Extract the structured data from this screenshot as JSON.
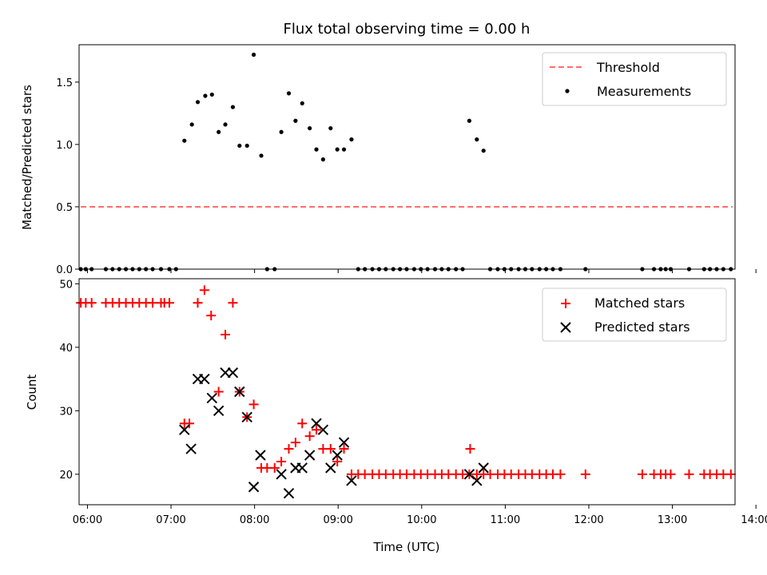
{
  "chart_data": [
    {
      "type": "scatter",
      "title": "Flux total observing time = 0.00 h",
      "ylabel": "Matched/Predicted stars",
      "xlim": [
        5.9,
        13.75
      ],
      "ylim": [
        0.0,
        1.8
      ],
      "yticks": [
        "0.0",
        "0.5",
        "1.0",
        "1.5"
      ],
      "ytick_values": [
        0.0,
        0.5,
        1.0,
        1.5
      ],
      "xtick_values": [
        6,
        7,
        8,
        9,
        10,
        11,
        12,
        13,
        14
      ],
      "legend_position": "top-right",
      "threshold": {
        "name": "Threshold",
        "y": 0.5,
        "x": [
          5.92,
          13.72
        ],
        "color": "#ff6e6e"
      },
      "measurements": {
        "name": "Measurements",
        "color": "#000000",
        "x": [
          5.92,
          5.98,
          6.05,
          6.22,
          6.3,
          6.38,
          6.46,
          6.54,
          6.62,
          6.7,
          6.78,
          6.88,
          6.98,
          7.06,
          7.16,
          7.25,
          7.32,
          7.41,
          7.49,
          7.57,
          7.65,
          7.74,
          7.82,
          7.91,
          7.99,
          8.08,
          8.15,
          8.24,
          8.32,
          8.41,
          8.49,
          8.57,
          8.66,
          8.74,
          8.82,
          8.91,
          8.99,
          9.07,
          9.16,
          9.24,
          9.32,
          9.41,
          9.49,
          9.57,
          9.66,
          9.74,
          9.82,
          9.91,
          9.99,
          10.07,
          10.16,
          10.24,
          10.32,
          10.41,
          10.49,
          10.57,
          10.66,
          10.74,
          10.82,
          10.91,
          10.99,
          11.07,
          11.16,
          11.24,
          11.32,
          11.41,
          11.49,
          11.57,
          11.66,
          11.96,
          12.64,
          12.78,
          12.86,
          12.92,
          12.98,
          13.2,
          13.38,
          13.45,
          13.53,
          13.61,
          13.7
        ],
        "y": [
          0,
          0,
          0,
          0,
          0,
          0,
          0,
          0,
          0,
          0,
          0,
          0,
          0,
          0,
          1.03,
          1.16,
          1.34,
          1.39,
          1.4,
          1.1,
          1.16,
          1.3,
          0.99,
          0.99,
          1.72,
          0.91,
          0,
          0,
          1.1,
          1.41,
          1.19,
          1.33,
          1.13,
          0.96,
          0.88,
          1.13,
          0.96,
          0.96,
          1.04,
          0,
          0,
          0,
          0,
          0,
          0,
          0,
          0,
          0,
          0,
          0,
          0,
          0,
          0,
          0,
          0,
          1.19,
          1.04,
          0.95,
          0,
          0,
          0,
          0,
          0,
          0,
          0,
          0,
          0,
          0,
          0,
          0,
          0,
          0,
          0,
          0,
          0,
          0,
          0,
          0,
          0,
          0,
          0
        ]
      }
    },
    {
      "type": "scatter",
      "ylabel": "Count",
      "xlabel": "Time (UTC)",
      "xlim": [
        5.9,
        13.75
      ],
      "ylim": [
        15.2,
        50.8
      ],
      "yticks": [
        "20",
        "30",
        "40",
        "50"
      ],
      "ytick_values": [
        20,
        30,
        40,
        50
      ],
      "xticks": [
        "06:00",
        "07:00",
        "08:00",
        "09:00",
        "10:00",
        "11:00",
        "12:00",
        "13:00",
        "14:00"
      ],
      "xtick_values": [
        6,
        7,
        8,
        9,
        10,
        11,
        12,
        13,
        14
      ],
      "legend_position": "top-right",
      "series": [
        {
          "name": "Matched stars",
          "marker": "+",
          "color": "#ff0000",
          "x": [
            5.92,
            5.98,
            6.05,
            6.22,
            6.3,
            6.38,
            6.46,
            6.54,
            6.62,
            6.7,
            6.78,
            6.88,
            6.92,
            6.98,
            7.16,
            7.22,
            7.32,
            7.4,
            7.48,
            7.57,
            7.65,
            7.74,
            7.82,
            7.91,
            7.99,
            8.08,
            8.15,
            8.24,
            8.32,
            8.41,
            8.49,
            8.57,
            8.66,
            8.74,
            8.82,
            8.91,
            8.99,
            9.07,
            9.16,
            9.24,
            9.32,
            9.41,
            9.49,
            9.57,
            9.66,
            9.74,
            9.82,
            9.91,
            9.99,
            10.07,
            10.16,
            10.24,
            10.32,
            10.41,
            10.49,
            10.57,
            10.58,
            10.66,
            10.74,
            10.82,
            10.91,
            10.99,
            11.07,
            11.16,
            11.24,
            11.32,
            11.41,
            11.49,
            11.57,
            11.66,
            11.96,
            12.64,
            12.78,
            12.86,
            12.92,
            12.98,
            13.2,
            13.38,
            13.45,
            13.53,
            13.61,
            13.7
          ],
          "y": [
            47,
            47,
            47,
            47,
            47,
            47,
            47,
            47,
            47,
            47,
            47,
            47,
            47,
            47,
            28,
            28,
            47,
            49,
            45,
            33,
            42,
            47,
            33,
            29,
            31,
            21,
            21,
            21,
            22,
            24,
            25,
            28,
            26,
            27,
            24,
            24,
            22,
            24,
            20,
            20,
            20,
            20,
            20,
            20,
            20,
            20,
            20,
            20,
            20,
            20,
            20,
            20,
            20,
            20,
            20,
            20,
            24,
            20,
            20,
            20,
            20,
            20,
            20,
            20,
            20,
            20,
            20,
            20,
            20,
            20,
            20,
            20,
            20,
            20,
            20,
            20,
            20,
            20,
            20,
            20,
            20,
            20
          ]
        },
        {
          "name": "Predicted stars",
          "marker": "x",
          "color": "#000000",
          "x": [
            7.16,
            7.24,
            7.32,
            7.4,
            7.49,
            7.57,
            7.65,
            7.74,
            7.82,
            7.91,
            7.99,
            8.07,
            8.32,
            8.41,
            8.49,
            8.57,
            8.66,
            8.74,
            8.82,
            8.91,
            8.99,
            9.07,
            9.16,
            10.57,
            10.66,
            10.74
          ],
          "y": [
            27,
            24,
            35,
            35,
            32,
            30,
            36,
            36,
            33,
            29,
            18,
            23,
            20,
            17,
            21,
            21,
            23,
            28,
            27,
            21,
            23,
            25,
            19,
            20,
            19,
            21
          ]
        }
      ]
    }
  ]
}
